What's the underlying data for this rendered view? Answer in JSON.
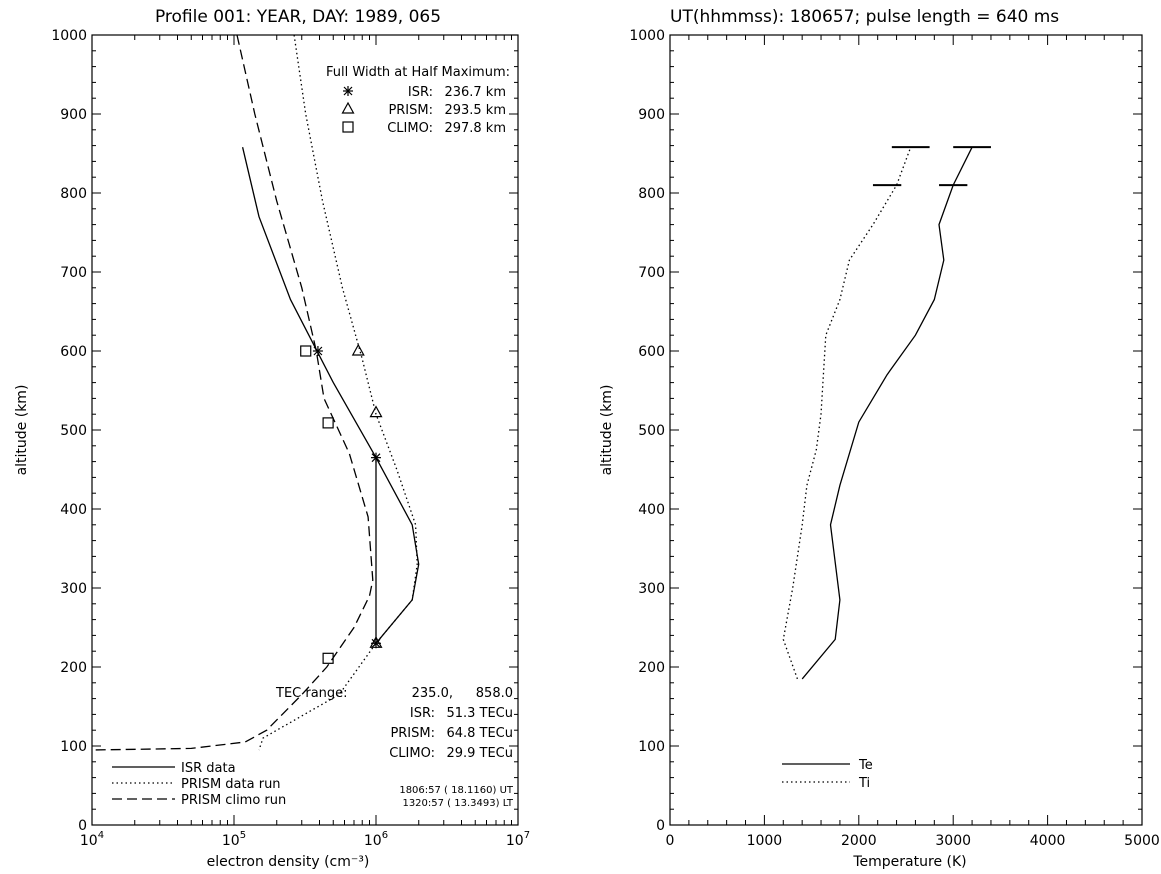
{
  "chart_data": [
    {
      "type": "line",
      "title": "Profile 001: YEAR, DAY: 1989, 065",
      "xlabel": "electron density (cm⁻³)",
      "ylabel": "altitude (km)",
      "xscale": "log",
      "xlim": [
        10000,
        10000000
      ],
      "ylim": [
        0,
        1000
      ],
      "xticks": [
        {
          "value": 10000,
          "base": "10",
          "exp": "4"
        },
        {
          "value": 100000,
          "base": "10",
          "exp": "5"
        },
        {
          "value": 1000000,
          "base": "10",
          "exp": "6"
        },
        {
          "value": 10000000,
          "base": "10",
          "exp": "7"
        }
      ],
      "yticks": [
        "0",
        "100",
        "200",
        "300",
        "400",
        "500",
        "600",
        "700",
        "800",
        "900",
        "1000"
      ],
      "series": [
        {
          "name": "ISR data",
          "style": "solid",
          "points": [
            [
              115000,
              858
            ],
            [
              150000,
              770
            ],
            [
              250000,
              665
            ],
            [
              500000,
              560
            ],
            [
              1000000,
              465
            ],
            [
              1800000,
              380
            ],
            [
              2000000,
              330
            ],
            [
              1800000,
              285
            ],
            [
              1000000,
              230
            ]
          ]
        },
        {
          "name": "PRISM data run",
          "style": "dotted",
          "points": [
            [
              265000,
              1000
            ],
            [
              320000,
              900
            ],
            [
              420000,
              790
            ],
            [
              580000,
              680
            ],
            [
              800000,
              590
            ],
            [
              1000000,
              520
            ],
            [
              1400000,
              450
            ],
            [
              1900000,
              380
            ],
            [
              1950000,
              330
            ],
            [
              1800000,
              285
            ],
            [
              1000000,
              230
            ],
            [
              550000,
              165
            ],
            [
              160000,
              110
            ],
            [
              150000,
              95
            ]
          ]
        },
        {
          "name": "PRISM climo run",
          "style": "dashed",
          "points": [
            [
              105000,
              1000
            ],
            [
              140000,
              900
            ],
            [
              200000,
              790
            ],
            [
              300000,
              680
            ],
            [
              380000,
              600
            ],
            [
              430000,
              540
            ],
            [
              650000,
              470
            ],
            [
              880000,
              390
            ],
            [
              950000,
              310
            ],
            [
              900000,
              290
            ],
            [
              700000,
              250
            ],
            [
              450000,
              200
            ],
            [
              300000,
              165
            ],
            [
              170000,
              120
            ],
            [
              120000,
              105
            ],
            [
              50000,
              97
            ],
            [
              10000,
              95
            ]
          ]
        }
      ],
      "fwhm_bar": {
        "low": 230,
        "high": 465
      },
      "markers": [
        {
          "series": "ISR",
          "symbol": "asterisk",
          "points": [
            [
              390000,
              600
            ],
            [
              1000000,
              465
            ],
            [
              1000000,
              230
            ]
          ]
        },
        {
          "series": "PRISM",
          "symbol": "triangle",
          "points": [
            [
              750000,
              600
            ],
            [
              1000000,
              522
            ],
            [
              1000000,
              230
            ]
          ]
        },
        {
          "series": "CLIMO",
          "symbol": "square",
          "points": [
            [
              320000,
              600
            ],
            [
              460000,
              509
            ],
            [
              460000,
              211
            ]
          ]
        }
      ],
      "fwhm": {
        "heading": "Full Width at Half Maximum:",
        "rows": [
          {
            "symbol": "asterisk",
            "label": "ISR:",
            "value": "236.7 km"
          },
          {
            "symbol": "triangle",
            "label": "PRISM:",
            "value": "293.5 km"
          },
          {
            "symbol": "square",
            "label": "CLIMO:",
            "value": "297.8 km"
          }
        ]
      },
      "tec": {
        "range_label": "TEC range:",
        "range_low": "235.0,",
        "range_high": "858.0",
        "rows": [
          {
            "label": "ISR:",
            "value": "51.3 TECu"
          },
          {
            "label": "PRISM:",
            "value": "64.8 TECu"
          },
          {
            "label": "CLIMO:",
            "value": "29.9 TECu"
          }
        ]
      },
      "legend_position": "bottom-left",
      "times": [
        "1806:57 ( 18.1160) UT",
        "1320:57 ( 13.3493) LT"
      ]
    },
    {
      "type": "line",
      "title": "UT(hhmmss): 180657; pulse length =   640 ms",
      "xlabel": "Temperature (K)",
      "ylabel": "altitude (km)",
      "xlim": [
        0,
        5000
      ],
      "ylim": [
        0,
        1000
      ],
      "xticks": [
        "0",
        "1000",
        "2000",
        "3000",
        "4000",
        "5000"
      ],
      "yticks": [
        "0",
        "100",
        "200",
        "300",
        "400",
        "500",
        "600",
        "700",
        "800",
        "900",
        "1000"
      ],
      "series": [
        {
          "name": "Te",
          "style": "solid",
          "points": [
            [
              1400,
              185
            ],
            [
              1750,
              235
            ],
            [
              1800,
              285
            ],
            [
              1700,
              380
            ],
            [
              1800,
              430
            ],
            [
              2000,
              510
            ],
            [
              2300,
              570
            ],
            [
              2600,
              620
            ],
            [
              2800,
              665
            ],
            [
              2900,
              715
            ],
            [
              2850,
              760
            ],
            [
              3000,
              810
            ],
            [
              3200,
              858
            ]
          ]
        },
        {
          "name": "Ti",
          "style": "dotted",
          "points": [
            [
              1350,
              185
            ],
            [
              1200,
              235
            ],
            [
              1300,
              300
            ],
            [
              1400,
              380
            ],
            [
              1450,
              430
            ],
            [
              1550,
              475
            ],
            [
              1600,
              520
            ],
            [
              1650,
              620
            ],
            [
              1800,
              665
            ],
            [
              1900,
              715
            ],
            [
              2150,
              760
            ],
            [
              2400,
              810
            ],
            [
              2550,
              858
            ]
          ]
        }
      ],
      "error_bars": [
        {
          "series": "Te",
          "alt": 858,
          "low": 3000,
          "high": 3400
        },
        {
          "series": "Te",
          "alt": 810,
          "low": 2850,
          "high": 3150
        },
        {
          "series": "Ti",
          "alt": 858,
          "low": 2350,
          "high": 2750
        },
        {
          "series": "Ti",
          "alt": 810,
          "low": 2150,
          "high": 2450
        }
      ],
      "legend_position": "bottom-left"
    }
  ]
}
